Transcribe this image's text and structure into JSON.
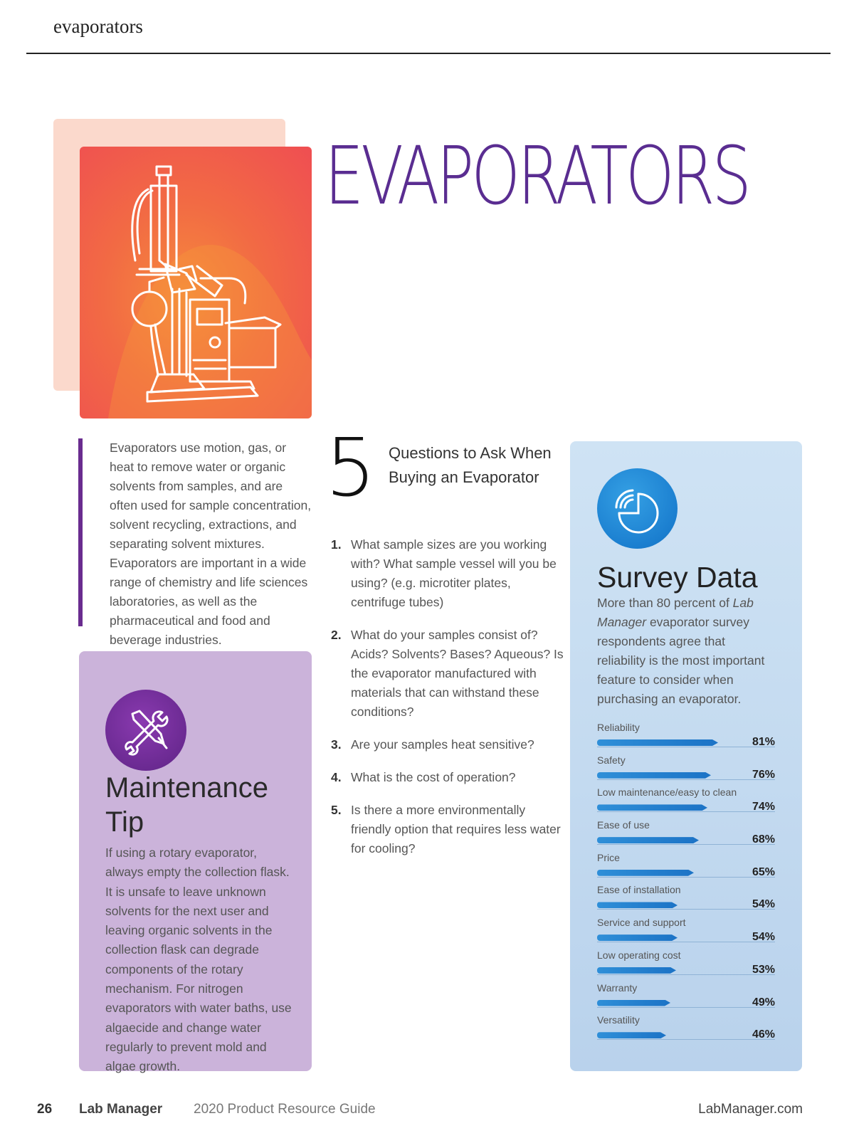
{
  "header": {
    "section": "evaporators"
  },
  "hero": {
    "title": "EVAPORATORS"
  },
  "intro": {
    "text": "Evaporators use motion, gas, or heat to remove water or organic solvents from samples, and are often used for sample concentration, solvent recycling, extractions, and separating solvent mixtures. Evaporators are important in a wide range of chemistry and life sciences laboratories, as well as the pharmaceutical and food and beverage industries."
  },
  "maintenance": {
    "title": "Maintenance Tip",
    "body": "If using a rotary evaporator, always empty the collection flask. It is unsafe to leave unknown solvents for the next user and leaving organic solvents in the collection flask can degrade components of the rotary mechanism. For nitrogen evaporators with water baths, use algaecide and change water regularly to prevent mold and algae growth.",
    "icon": "tools-icon"
  },
  "questions": {
    "number": "5",
    "heading": "Questions to Ask When Buying an Evaporator",
    "items": [
      {
        "num": "1.",
        "text": "What sample sizes are you working with? What sample vessel will you be using? (e.g. microtiter plates, centrifuge tubes)"
      },
      {
        "num": "2.",
        "text": "What do your samples consist of? Acids? Solvents? Bases? Aqueous? Is the evaporator manufactured with materials that can withstand these conditions?"
      },
      {
        "num": "3.",
        "text": "Are your samples heat sensitive?"
      },
      {
        "num": "4.",
        "text": "What is the cost of operation?"
      },
      {
        "num": "5.",
        "text": "Is there a more environmentally friendly option that requires less water for cooling?"
      }
    ]
  },
  "survey": {
    "title": "Survey Data",
    "intro_pre": "More than 80 percent of ",
    "intro_em": "Lab Manager",
    "intro_post": " evaporator survey respondents agree that reliability is the most important feature to consider when purchasing an evaporator.",
    "icon": "pie-chart-icon",
    "accent": "#1c73c6"
  },
  "chart_data": {
    "type": "bar",
    "categories": [
      "Reliability",
      "Safety",
      "Low maintenance/easy to clean",
      "Ease of use",
      "Price",
      "Ease of installation",
      "Service and support",
      "Low operating cost",
      "Warranty",
      "Versatility"
    ],
    "values": [
      81,
      76,
      74,
      68,
      65,
      54,
      54,
      53,
      49,
      46
    ],
    "labels": [
      "81%",
      "76%",
      "74%",
      "68%",
      "65%",
      "54%",
      "54%",
      "53%",
      "49%",
      "46%"
    ],
    "unit": "%",
    "xlim": [
      0,
      100
    ],
    "orientation": "horizontal"
  },
  "footer": {
    "page": "26",
    "brand": "Lab Manager",
    "guide": "2020 Product Resource Guide",
    "site": "LabManager.com"
  }
}
